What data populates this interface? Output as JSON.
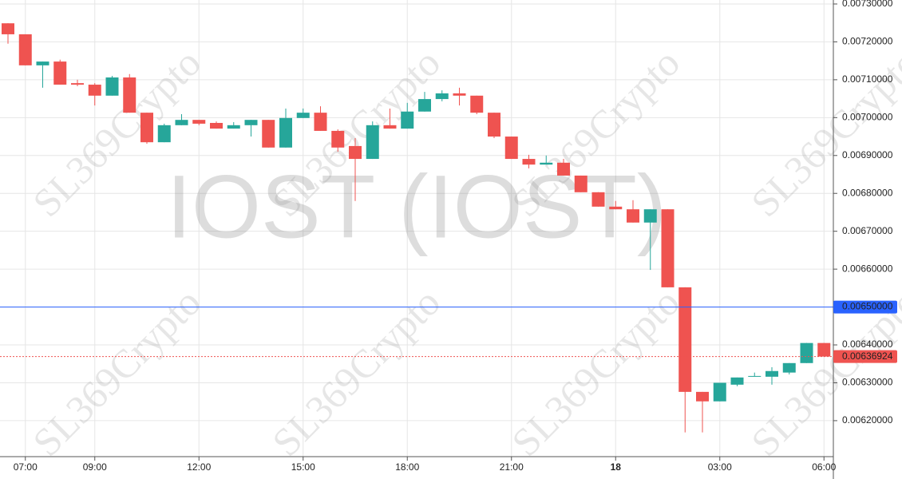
{
  "chart_data": {
    "type": "candlestick",
    "symbol": "IOST (IOST)",
    "watermark": "SL369Crypto",
    "categories": [
      null,
      "07:00",
      null,
      null,
      null,
      "09:00",
      null,
      null,
      null,
      null,
      null,
      "12:00",
      null,
      null,
      null,
      null,
      null,
      "15:00",
      null,
      null,
      null,
      null,
      null,
      "18:00",
      null,
      null,
      null,
      null,
      null,
      "21:00",
      null,
      null,
      null,
      null,
      null,
      "18",
      null,
      null,
      null,
      null,
      null,
      "03:00",
      null,
      null,
      null,
      null,
      null,
      "06:00"
    ],
    "open": [
      0.007249,
      0.00722,
      0.007138,
      0.007148,
      0.007091,
      0.007087,
      0.007058,
      0.007106,
      0.007013,
      0.006935,
      0.00698,
      0.006994,
      0.006986,
      0.006971,
      0.00698,
      0.006994,
      0.006921,
      0.006999,
      0.007013,
      0.006965,
      0.006925,
      0.006891,
      0.00698,
      0.006971,
      0.007016,
      0.007049,
      0.007064,
      0.007058,
      0.007013,
      0.00695,
      0.006891,
      0.006876,
      0.006881,
      0.006847,
      0.006803,
      0.006765,
      0.006758,
      0.006723,
      0.006758,
      0.006552,
      0.006276,
      0.006251,
      0.006295,
      0.006316,
      0.006316,
      0.006327,
      0.006352,
      0.006405
    ],
    "high": [
      0.007249,
      0.00722,
      0.007148,
      0.007153,
      0.0071,
      0.007091,
      0.00711,
      0.007115,
      0.007013,
      0.006984,
      0.007009,
      0.006994,
      0.00699,
      0.006988,
      0.006994,
      0.006994,
      0.007024,
      0.007024,
      0.00703,
      0.006969,
      0.006946,
      0.00699,
      0.007024,
      0.007039,
      0.007068,
      0.007072,
      0.007079,
      0.007058,
      0.007013,
      0.00695,
      0.006902,
      0.0069,
      0.006891,
      0.006847,
      0.006803,
      0.00678,
      0.006782,
      0.006758,
      0.006758,
      0.006552,
      0.006276,
      0.0063,
      0.006314,
      0.006327,
      0.006341,
      0.006352,
      0.006405,
      0.006405
    ],
    "low": [
      0.007195,
      0.007138,
      0.007079,
      0.007087,
      0.007083,
      0.007032,
      0.007058,
      0.007013,
      0.006931,
      0.006935,
      0.00698,
      0.00698,
      0.006971,
      0.006971,
      0.00695,
      0.006921,
      0.006921,
      0.006999,
      0.006965,
      0.00691,
      0.00678,
      0.006891,
      0.006971,
      0.006971,
      0.007016,
      0.007043,
      0.007032,
      0.007009,
      0.006946,
      0.006891,
      0.006866,
      0.006876,
      0.006847,
      0.006803,
      0.006765,
      0.006758,
      0.006723,
      0.006598,
      0.006552,
      0.006169,
      0.006169,
      0.006251,
      0.006291,
      0.006316,
      0.006295,
      0.006322,
      0.006352,
      0.00636924
    ],
    "close": [
      0.00722,
      0.007138,
      0.007148,
      0.007087,
      0.007087,
      0.007058,
      0.007106,
      0.007013,
      0.006935,
      0.00698,
      0.006994,
      0.006984,
      0.006971,
      0.00698,
      0.006994,
      0.006921,
      0.006999,
      0.007013,
      0.006965,
      0.006921,
      0.006891,
      0.00698,
      0.006971,
      0.007016,
      0.007049,
      0.007064,
      0.007058,
      0.007013,
      0.00695,
      0.006891,
      0.006876,
      0.006881,
      0.006847,
      0.006803,
      0.006765,
      0.006758,
      0.006723,
      0.006758,
      0.006552,
      0.006276,
      0.006251,
      0.0063,
      0.006314,
      0.006318,
      0.006331,
      0.006352,
      0.006405,
      0.00636924
    ],
    "up_color": "#26a69a",
    "down_color": "#ef5350",
    "ylim": [
      0.006105,
      0.0073105
    ],
    "yticks": [
      {
        "value": 0.0062,
        "label": "0.00620000"
      },
      {
        "value": 0.0063,
        "label": "0.00630000"
      },
      {
        "value": 0.0064,
        "label": "0.00640000"
      },
      {
        "value": 0.0065,
        "label": "0.00650000"
      },
      {
        "value": 0.0066,
        "label": "0.00660000"
      },
      {
        "value": 0.0067,
        "label": "0.00670000"
      },
      {
        "value": 0.0068,
        "label": "0.00680000"
      },
      {
        "value": 0.0069,
        "label": "0.00690000"
      },
      {
        "value": 0.007,
        "label": "0.00700000"
      },
      {
        "value": 0.0071,
        "label": "0.00710000"
      },
      {
        "value": 0.0072,
        "label": "0.00720000"
      },
      {
        "value": 0.0073,
        "label": "0.00730000"
      }
    ],
    "price_lines": [
      {
        "value": 0.0065,
        "label": "0.00650000",
        "color": "#2962ff"
      },
      {
        "value": 0.00636924,
        "label": "0.00636924",
        "color": "#ef5350"
      }
    ],
    "grid": true
  }
}
